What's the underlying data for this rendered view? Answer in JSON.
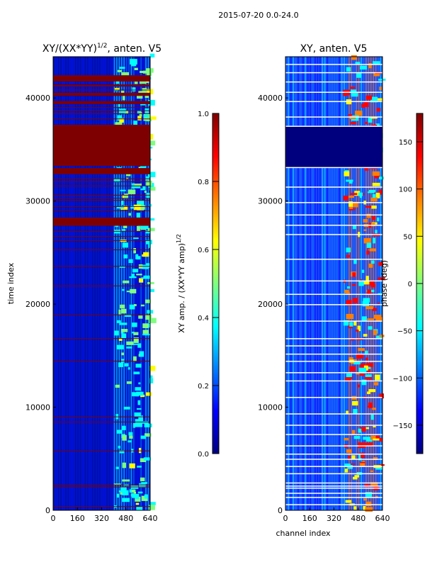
{
  "figure": {
    "suptitle": "2015-07-20 0.0-24.0"
  },
  "colors": {
    "jet": [
      "#00007f",
      "#0000ff",
      "#007fff",
      "#00ffff",
      "#7fff7f",
      "#ffff00",
      "#ff7f00",
      "#ff0000",
      "#7f0000"
    ],
    "saturated": "#7f0000",
    "gap_white": "#ffffff"
  },
  "chart_data": [
    {
      "type": "heatmap",
      "title_main": "XY/(XX*YY)",
      "title_sup": "1/2",
      "title_tail": ", anten. V5",
      "xlabel": "",
      "ylabel": "time index",
      "x_ticks": [
        "0",
        "160",
        "320",
        "480",
        "640"
      ],
      "x_tick_values": [
        0,
        160,
        320,
        480,
        640
      ],
      "y_ticks": [
        "0",
        "10000",
        "20000",
        "30000",
        "40000"
      ],
      "y_tick_values": [
        0,
        10000,
        20000,
        30000,
        40000
      ],
      "xlim": [
        0,
        640
      ],
      "ylim": [
        0,
        44000
      ],
      "colorbar": {
        "label_main": "XY amp. / (XX*YY amp)",
        "label_sup": "1/2",
        "range": [
          0.0,
          1.0
        ],
        "ticks": [
          "0.0",
          "0.2",
          "0.4",
          "0.6",
          "0.8",
          "1.0"
        ],
        "tick_values": [
          0.0,
          0.2,
          0.4,
          0.6,
          0.8,
          1.0
        ]
      },
      "saturated_blocks": [
        [
          27600,
          28400
        ],
        [
          32600,
          33200
        ],
        [
          33400,
          37400
        ],
        [
          39400,
          39700
        ],
        [
          40200,
          40500
        ],
        [
          41100,
          41300
        ],
        [
          41600,
          42200
        ]
      ],
      "saturated_lines": [
        400,
        2300,
        2500,
        5800,
        8600,
        9100,
        14500,
        16700,
        19000,
        21800,
        23700,
        25300,
        26200,
        26600,
        27100,
        29100,
        29500,
        30100,
        30300,
        30600,
        31500,
        31900,
        32200,
        38000,
        38500,
        38800,
        39100,
        40800
      ],
      "active_band": [
        400,
        640
      ]
    },
    {
      "type": "heatmap",
      "title": "XY, anten. V5",
      "xlabel": "channel index",
      "ylabel": "",
      "x_ticks": [
        "0",
        "160",
        "320",
        "480",
        "640"
      ],
      "x_tick_values": [
        0,
        160,
        320,
        480,
        640
      ],
      "y_ticks": [
        "0",
        "10000",
        "20000",
        "30000",
        "40000"
      ],
      "y_tick_values": [
        0,
        10000,
        20000,
        30000,
        40000
      ],
      "xlim": [
        0,
        640
      ],
      "ylim": [
        0,
        44000
      ],
      "colorbar": {
        "label": "phase (deg)",
        "range": [
          -180,
          180
        ],
        "ticks": [
          "−150",
          "−100",
          "−50",
          "0",
          "50",
          "100",
          "150"
        ],
        "tick_values": [
          -150,
          -100,
          -50,
          0,
          50,
          100,
          150
        ]
      },
      "dark_blocks": [
        [
          33200,
          37300
        ]
      ],
      "white_lines": [
        600,
        1300,
        1700,
        2200,
        2400,
        2700,
        3600,
        4300,
        5000,
        5500,
        6300,
        7400,
        8300,
        9400,
        11000,
        12600,
        13400,
        14500,
        15200,
        16000,
        16700,
        18400,
        20000,
        21000,
        22300,
        24400,
        26800,
        27700,
        28700,
        29900,
        31400,
        33300,
        37300,
        38200,
        39700,
        40600,
        41600,
        42500,
        43300
      ]
    }
  ]
}
